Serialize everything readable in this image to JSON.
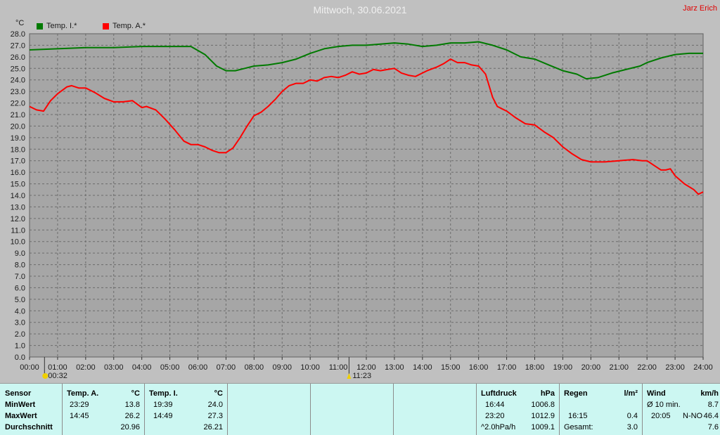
{
  "header": {
    "title": "Mittwoch, 30.06.2021",
    "author": "Jarz Erich"
  },
  "legend": [
    {
      "label": "Temp. I.*",
      "color": "#007a00"
    },
    {
      "label": "Temp. A.*",
      "color": "#ff0000"
    }
  ],
  "markers": [
    {
      "time": "00:32",
      "label": "00:32",
      "icon": "moon-icon"
    },
    {
      "time": "11:23",
      "label": "11:23",
      "icon": "sun-icon"
    }
  ],
  "chart_data": {
    "type": "line",
    "yunit": "°C",
    "ylim": [
      0,
      28
    ],
    "xlim": [
      "00:00",
      "24:00"
    ],
    "yticks": [
      "0.0",
      "1.0",
      "2.0",
      "3.0",
      "4.0",
      "5.0",
      "6.0",
      "7.0",
      "8.0",
      "9.0",
      "10.0",
      "11.0",
      "12.0",
      "13.0",
      "14.0",
      "15.0",
      "16.0",
      "17.0",
      "18.0",
      "19.0",
      "20.0",
      "21.0",
      "22.0",
      "23.0",
      "24.0",
      "25.0",
      "26.0",
      "27.0",
      "28.0"
    ],
    "xticks": [
      "00:00",
      "01:00",
      "02:00",
      "03:00",
      "04:00",
      "05:00",
      "06:00",
      "07:00",
      "08:00",
      "09:00",
      "10:00",
      "11:00",
      "12:00",
      "13:00",
      "14:00",
      "15:00",
      "16:00",
      "17:00",
      "18:00",
      "19:00",
      "20:00",
      "21:00",
      "22:00",
      "23:00",
      "24:00"
    ],
    "grid": true,
    "legend_position": "top-left",
    "series": [
      {
        "name": "Temp. I.*",
        "color": "#007a00",
        "x": [
          "00:00",
          "01:00",
          "02:00",
          "03:00",
          "04:00",
          "05:00",
          "05:45",
          "06:15",
          "06:40",
          "07:00",
          "07:20",
          "07:40",
          "08:00",
          "08:30",
          "09:00",
          "09:30",
          "10:00",
          "10:30",
          "11:00",
          "11:30",
          "12:00",
          "12:30",
          "13:00",
          "13:30",
          "14:00",
          "14:30",
          "15:00",
          "15:30",
          "16:00",
          "16:30",
          "17:00",
          "17:30",
          "18:00",
          "18:30",
          "19:00",
          "19:30",
          "19:50",
          "20:15",
          "20:45",
          "21:15",
          "21:45",
          "22:00",
          "22:30",
          "23:00",
          "23:30",
          "24:00"
        ],
        "y": [
          26.6,
          26.7,
          26.8,
          26.8,
          26.9,
          26.9,
          26.9,
          26.2,
          25.2,
          24.8,
          24.8,
          25.0,
          25.2,
          25.3,
          25.5,
          25.8,
          26.3,
          26.7,
          26.9,
          27.0,
          27.0,
          27.1,
          27.2,
          27.1,
          26.9,
          27.0,
          27.2,
          27.2,
          27.3,
          27.0,
          26.6,
          26.0,
          25.8,
          25.3,
          24.8,
          24.5,
          24.1,
          24.2,
          24.6,
          24.9,
          25.2,
          25.5,
          25.9,
          26.2,
          26.3,
          26.3
        ]
      },
      {
        "name": "Temp. A.*",
        "color": "#ff0000",
        "x": [
          "00:00",
          "00:15",
          "00:30",
          "00:45",
          "01:00",
          "01:20",
          "01:30",
          "01:45",
          "02:00",
          "02:20",
          "02:40",
          "03:00",
          "03:20",
          "03:40",
          "04:00",
          "04:10",
          "04:30",
          "04:50",
          "05:10",
          "05:30",
          "05:45",
          "06:00",
          "06:15",
          "06:30",
          "06:45",
          "07:00",
          "07:15",
          "07:30",
          "07:45",
          "08:00",
          "08:15",
          "08:30",
          "08:45",
          "09:00",
          "09:15",
          "09:30",
          "09:45",
          "10:00",
          "10:15",
          "10:30",
          "10:45",
          "11:00",
          "11:15",
          "11:30",
          "11:45",
          "12:00",
          "12:15",
          "12:30",
          "12:45",
          "13:00",
          "13:15",
          "13:30",
          "13:45",
          "14:00",
          "14:10",
          "14:30",
          "14:45",
          "15:00",
          "15:15",
          "15:30",
          "15:45",
          "16:00",
          "16:15",
          "16:30",
          "16:40",
          "16:50",
          "17:00",
          "17:20",
          "17:40",
          "18:00",
          "18:20",
          "18:40",
          "19:00",
          "19:20",
          "19:40",
          "20:00",
          "20:30",
          "21:00",
          "21:30",
          "21:50",
          "22:00",
          "22:15",
          "22:30",
          "22:40",
          "22:50",
          "23:00",
          "23:20",
          "23:40",
          "23:50",
          "24:00"
        ],
        "y": [
          21.7,
          21.4,
          21.3,
          22.2,
          22.8,
          23.4,
          23.5,
          23.3,
          23.3,
          22.9,
          22.4,
          22.1,
          22.1,
          22.2,
          21.6,
          21.7,
          21.4,
          20.6,
          19.7,
          18.7,
          18.4,
          18.4,
          18.2,
          17.9,
          17.7,
          17.7,
          18.1,
          19.0,
          20.0,
          20.9,
          21.2,
          21.7,
          22.3,
          23.0,
          23.5,
          23.7,
          23.7,
          24.0,
          23.9,
          24.2,
          24.3,
          24.2,
          24.4,
          24.7,
          24.5,
          24.6,
          24.9,
          24.8,
          24.9,
          25.0,
          24.6,
          24.4,
          24.3,
          24.6,
          24.8,
          25.1,
          25.4,
          25.8,
          25.5,
          25.5,
          25.3,
          25.2,
          24.5,
          22.5,
          21.7,
          21.5,
          21.3,
          20.7,
          20.2,
          20.1,
          19.5,
          19.0,
          18.2,
          17.6,
          17.1,
          16.9,
          16.9,
          17.0,
          17.1,
          17.0,
          17.0,
          16.6,
          16.2,
          16.2,
          16.3,
          15.7,
          15.0,
          14.5,
          14.1,
          14.3
        ]
      }
    ]
  },
  "table": {
    "row_labels": [
      "Sensor",
      "MinWert",
      "MaxWert",
      "Durchschnitt"
    ],
    "temp_a": {
      "name": "Temp. A.",
      "unit": "°C",
      "min_time": "23:29",
      "min": "13.8",
      "max_time": "14:45",
      "max": "26.2",
      "avg": "20.96"
    },
    "temp_i": {
      "name": "Temp. I.",
      "unit": "°C",
      "min_time": "19:39",
      "min": "24.0",
      "max_time": "14:49",
      "max": "27.3",
      "avg": "26.21"
    },
    "luftdruck": {
      "name": "Luftdruck",
      "unit": "hPa",
      "min_time": "16:44",
      "min": "1006.8",
      "max_time": "23:20",
      "max": "1012.9",
      "trend_label": "^2.0hPa/h",
      "trend": "1009.1"
    },
    "regen": {
      "name": "Regen",
      "unit": "l/m²",
      "time": "16:15",
      "value": "0.4",
      "total_label": "Gesamt:",
      "total": "3.0"
    },
    "wind": {
      "name": "Wind",
      "unit": "km/h",
      "avg_label": "Ø 10 min.",
      "avg": "8.7",
      "max_time": "20:05",
      "dir": "N-NO",
      "max": "46.4",
      "value3": "7.6"
    }
  }
}
